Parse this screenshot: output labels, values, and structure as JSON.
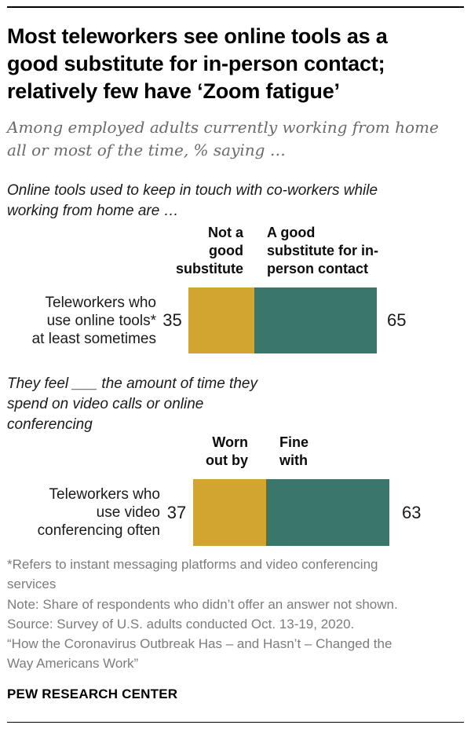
{
  "header": {
    "title": "Most teleworkers see online tools as a\ngood substitute for in-person contact;\nrelatively few have ‘Zoom fatigue’",
    "subtitle": "Among employed adults currently working from home\nall or most of the time, % saying …"
  },
  "colors": {
    "gold": "#D1A530",
    "teal": "#3A766A"
  },
  "charts": [
    {
      "question": "Online tools used to keep in touch with co-workers while\nworking from home are …",
      "row_label": "Teleworkers who\nuse online tools*\nat least sometimes",
      "left": {
        "label": "Not a good\nsubstitute",
        "value": 35
      },
      "right": {
        "label": "A good\nsubstitute for in-\nperson contact",
        "value": 65
      }
    },
    {
      "question": "They feel ___  the amount of time they\nspend on video calls or online\nconferencing",
      "row_label": "Teleworkers who\nuse video\nconferencing often",
      "left": {
        "label": "Worn\nout by",
        "value": 37
      },
      "right": {
        "label": "Fine\nwith",
        "value": 63
      }
    }
  ],
  "chart_data": [
    {
      "type": "bar",
      "stacked": true,
      "orientation": "horizontal",
      "title": "Online tools used to keep in touch with co-workers while working from home are …",
      "categories": [
        "Teleworkers who use online tools* at least sometimes"
      ],
      "series": [
        {
          "name": "Not a good substitute",
          "values": [
            35
          ],
          "color": "#D1A530"
        },
        {
          "name": "A good substitute for in-person contact",
          "values": [
            65
          ],
          "color": "#3A766A"
        }
      ],
      "xlim": [
        0,
        100
      ],
      "grid": false,
      "legend_position": "above-bar-segments",
      "data_labels": "outside-ends"
    },
    {
      "type": "bar",
      "stacked": true,
      "orientation": "horizontal",
      "title": "They feel ___ the amount of time they spend on video calls or online conferencing",
      "categories": [
        "Teleworkers who use video conferencing often"
      ],
      "series": [
        {
          "name": "Worn out by",
          "values": [
            37
          ],
          "color": "#D1A530"
        },
        {
          "name": "Fine with",
          "values": [
            63
          ],
          "color": "#3A766A"
        }
      ],
      "xlim": [
        0,
        100
      ],
      "grid": false,
      "legend_position": "above-bar-segments",
      "data_labels": "outside-ends"
    }
  ],
  "footer": {
    "notes": "*Refers to instant messaging platforms and video conferencing\nservices\nNote: Share of respondents who didn’t offer an answer not shown.\nSource: Survey of U.S. adults conducted Oct. 13-19, 2020.\n“How the Coronavirus Outbreak Has – and Hasn’t – Changed the\nWay Americans Work”",
    "brand": "PEW RESEARCH CENTER"
  }
}
